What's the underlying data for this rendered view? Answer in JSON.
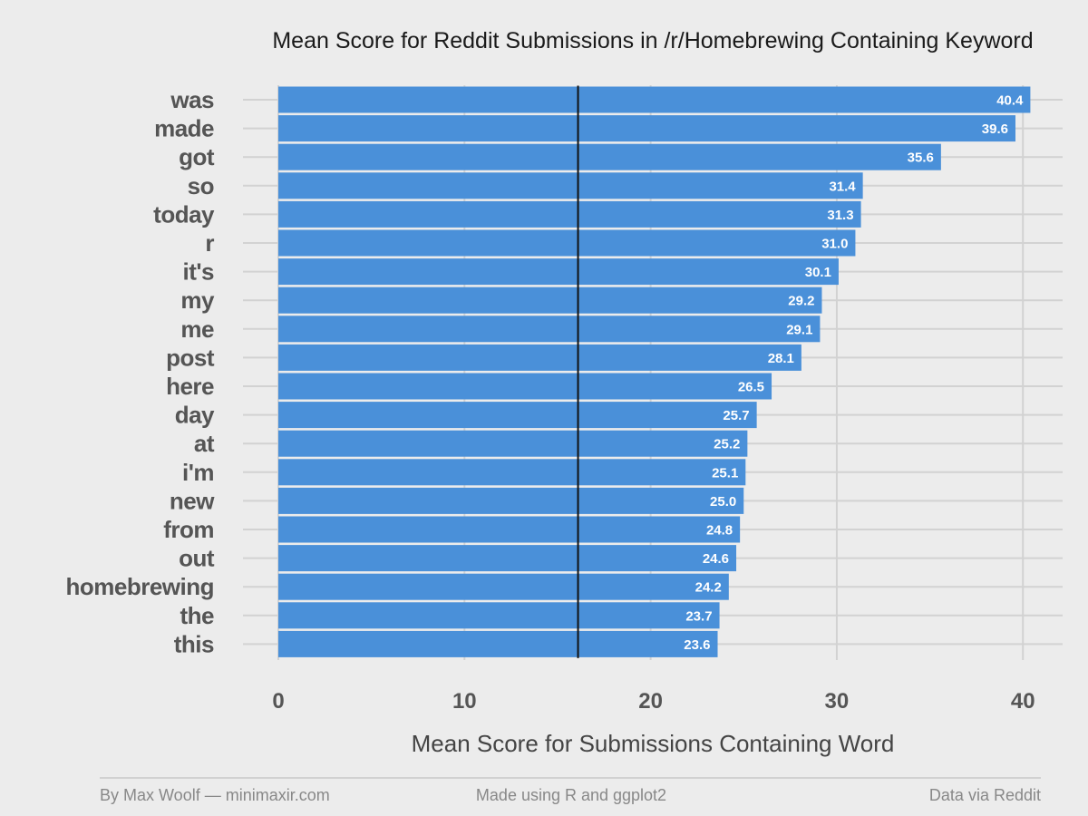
{
  "chart_data": {
    "type": "bar",
    "orientation": "horizontal",
    "title": "Mean Score for Reddit Submissions in /r/Homebrewing Containing Keyword",
    "xlabel": "Mean Score for Submissions Containing Word",
    "ylabel": "",
    "categories": [
      "was",
      "made",
      "got",
      "so",
      "today",
      "r",
      "it's",
      "my",
      "me",
      "post",
      "here",
      "day",
      "at",
      "i'm",
      "new",
      "from",
      "out",
      "homebrewing",
      "the",
      "this"
    ],
    "values": [
      40.4,
      39.6,
      35.6,
      31.4,
      31.3,
      31.0,
      30.1,
      29.2,
      29.1,
      28.1,
      26.5,
      25.7,
      25.2,
      25.1,
      25.0,
      24.8,
      24.6,
      24.2,
      23.7,
      23.6
    ],
    "value_labels": [
      "40.4",
      "39.6",
      "35.6",
      "31.4",
      "31.3",
      "31.0",
      "30.1",
      "29.2",
      "29.1",
      "28.1",
      "26.5",
      "25.7",
      "25.2",
      "25.1",
      "25.0",
      "24.8",
      "24.6",
      "24.2",
      "23.7",
      "23.6"
    ],
    "xlim": [
      0,
      42
    ],
    "x_ticks": [
      0,
      10,
      20,
      30,
      40
    ],
    "x_tick_labels": [
      "0",
      "10",
      "20",
      "30",
      "40"
    ],
    "reference_line": 16.1,
    "grid": true,
    "bar_color": "#4a90d9",
    "reference_line_color": "#111111"
  },
  "footer": {
    "left": "By Max Woolf — minimaxir.com",
    "center": "Made using R and ggplot2",
    "right": "Data via Reddit"
  }
}
